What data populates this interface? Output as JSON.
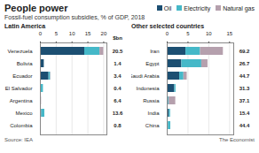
{
  "title": "People power",
  "subtitle": "Fossil-fuel consumption subsidies, % of GDP, 2018",
  "annotations": [
    "Source: IEA",
    "The Economist"
  ],
  "chart_data": [
    {
      "type": "bar",
      "orientation": "horizontal",
      "stacked": true,
      "grid": true,
      "legend": "top",
      "title": "Latin America",
      "categories": [
        "Venezuela",
        "Bolivia",
        "Ecuador",
        "El Salvador",
        "Argentina",
        "Mexico",
        "Colombia"
      ],
      "series": [
        {
          "name": "Oil",
          "color": "#1c4f72",
          "values": [
            14.0,
            1.2,
            2.7,
            0.05,
            0.2,
            0.4,
            0.1
          ]
        },
        {
          "name": "Electricity",
          "color": "#45b8c8",
          "values": [
            4.8,
            0.05,
            0.5,
            0.9,
            0.05,
            1.0,
            0.0
          ]
        },
        {
          "name": "Natural gas",
          "color": "#b5a0ad",
          "values": [
            1.2,
            0.05,
            0.1,
            0.0,
            0.1,
            0.0,
            0.0
          ]
        }
      ],
      "values_bn": [
        20.5,
        1.4,
        3.4,
        0.4,
        6.4,
        13.6,
        0.8
      ],
      "annotations": [
        "$bn"
      ],
      "xlim": [
        0,
        21
      ],
      "xticks": [
        0,
        5,
        10,
        15,
        20
      ]
    },
    {
      "type": "bar",
      "orientation": "horizontal",
      "stacked": true,
      "grid": true,
      "title": "Other selected countries",
      "categories": [
        "Iran",
        "Egypt",
        "Saudi Arabia",
        "Indonesia",
        "Russia",
        "India",
        "China"
      ],
      "series": [
        {
          "name": "Oil",
          "color": "#1c4f72",
          "values": [
            4.5,
            3.5,
            3.0,
            1.8,
            0.3,
            0.5,
            0.25
          ]
        },
        {
          "name": "Electricity",
          "color": "#45b8c8",
          "values": [
            3.5,
            4.8,
            1.0,
            0.3,
            0.15,
            0.3,
            0.6
          ]
        },
        {
          "name": "Natural gas",
          "color": "#b5a0ad",
          "values": [
            5.5,
            1.5,
            0.8,
            0.0,
            1.6,
            0.0,
            0.0
          ]
        }
      ],
      "values_bn": [
        69.2,
        26.7,
        44.7,
        31.3,
        37.1,
        15.4,
        44.4
      ],
      "xlim": [
        0,
        16
      ],
      "xticks": [
        0,
        5,
        10,
        15
      ]
    }
  ]
}
